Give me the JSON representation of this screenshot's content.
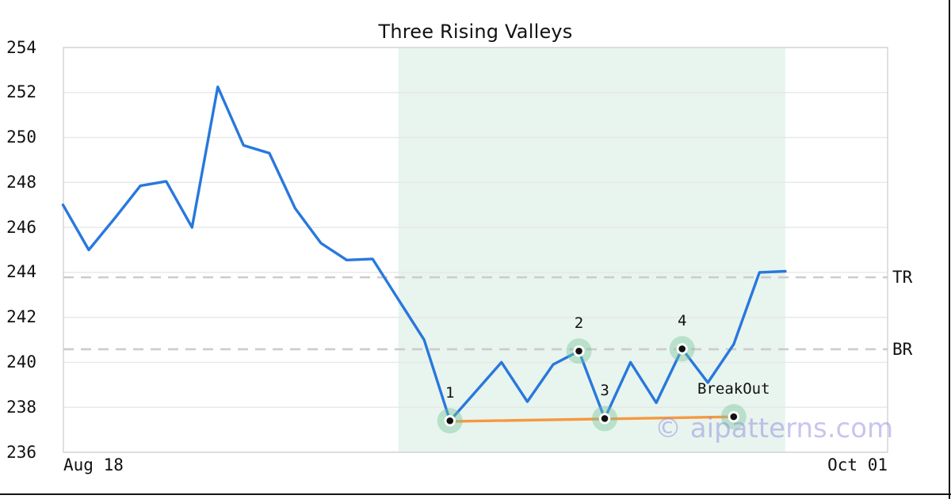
{
  "figure": {
    "watermark": "© aipatterns.com"
  },
  "chart_data": {
    "type": "line",
    "title": "Three Rising Valleys",
    "x_tick_labels": [
      "Aug 18",
      "Oct 01"
    ],
    "y_ticks": [
      236,
      238,
      240,
      242,
      244,
      246,
      248,
      250,
      252,
      254
    ],
    "ylim": [
      236,
      254
    ],
    "grid": true,
    "series": [
      {
        "name": "price",
        "values": [
          247.0,
          245.0,
          246.4,
          247.85,
          248.05,
          246.0,
          252.25,
          249.65,
          249.3,
          246.85,
          245.3,
          244.55,
          244.6,
          242.8,
          241.0,
          237.4,
          238.7,
          240.0,
          238.25,
          239.9,
          240.5,
          237.5,
          240.0,
          238.2,
          240.6,
          239.1,
          240.8,
          244.0,
          244.05
        ]
      }
    ],
    "pattern_region": {
      "start_index": 13,
      "end_index": 28
    },
    "hlines": [
      {
        "label": "TR",
        "value": 243.78
      },
      {
        "label": "BR",
        "value": 240.58
      }
    ],
    "markers": [
      {
        "label": "1",
        "index": 15,
        "value": 237.4
      },
      {
        "label": "2",
        "index": 20,
        "value": 240.5
      },
      {
        "label": "3",
        "index": 21,
        "value": 237.5
      },
      {
        "label": "4",
        "index": 24,
        "value": 240.6
      },
      {
        "label": "BreakOut",
        "index": 26,
        "value": 237.58
      }
    ],
    "trendline": {
      "start": {
        "index": 15,
        "value": 237.37
      },
      "end": {
        "index": 26,
        "value": 237.58
      }
    },
    "colors": {
      "price_line": "#2878dd",
      "trendline": "#f79840",
      "marker_halo": "rgba(117,196,156,0.42)",
      "marker_dot": "#111111",
      "pattern_region": "#e8f4ee",
      "gridline": "#e7e7e7",
      "spine": "#d8d8d8",
      "dashed_line": "#cccccc",
      "watermark": "rgba(139,133,222,0.48)"
    }
  }
}
